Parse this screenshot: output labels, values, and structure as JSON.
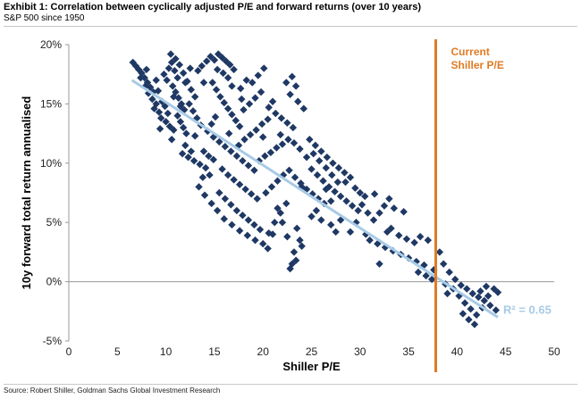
{
  "header": {
    "title": "Exhibit 1: Correlation between cyclically adjusted P/E and forward returns (over 10 years)",
    "subtitle": "S&P 500 since 1950"
  },
  "footer": {
    "source": "Source: Robert Shiller, Goldman Sachs Global Investment Research"
  },
  "colors": {
    "points": "#1f3864",
    "trend": "#a8cbe6",
    "current_line": "#e07b24"
  },
  "chart_data": {
    "type": "scatter",
    "xlabel": "Shiller P/E",
    "ylabel": "10y forward total return annualised",
    "xlim": [
      0,
      50
    ],
    "ylim": [
      -5,
      20
    ],
    "x_ticks": [
      "0",
      "5",
      "10",
      "15",
      "20",
      "25",
      "30",
      "35",
      "40",
      "45",
      "50"
    ],
    "y_ticks": [
      "-5%",
      "0%",
      "5%",
      "10%",
      "15%",
      "20%"
    ],
    "grid": false,
    "current_pe": 37.8,
    "current_label_line1": "Current",
    "current_label_line2": "Shiller P/E",
    "r_squared_label": "R² = 0.65",
    "trendline": {
      "x": [
        6.5,
        44.2
      ],
      "y": [
        17.0,
        -3.0
      ]
    },
    "points": [
      [
        6.6,
        18.5
      ],
      [
        6.9,
        18.2
      ],
      [
        7.2,
        17.9
      ],
      [
        7.5,
        17.6
      ],
      [
        7.8,
        17.2
      ],
      [
        8.1,
        16.8
      ],
      [
        8.4,
        16.4
      ],
      [
        8.7,
        16.0
      ],
      [
        7.4,
        17.2
      ],
      [
        7.9,
        16.5
      ],
      [
        8.2,
        15.9
      ],
      [
        8.6,
        15.4
      ],
      [
        9.0,
        15.0
      ],
      [
        8.8,
        14.6
      ],
      [
        9.3,
        14.3
      ],
      [
        9.6,
        15.2
      ],
      [
        9.9,
        14.8
      ],
      [
        10.2,
        14.2
      ],
      [
        9.5,
        13.8
      ],
      [
        10.0,
        13.5
      ],
      [
        10.4,
        13.1
      ],
      [
        10.8,
        12.8
      ],
      [
        9.8,
        17.5
      ],
      [
        10.1,
        17.0
      ],
      [
        10.3,
        18.0
      ],
      [
        10.6,
        18.5
      ],
      [
        10.9,
        17.8
      ],
      [
        11.2,
        17.2
      ],
      [
        10.7,
        16.5
      ],
      [
        11.0,
        16.0
      ],
      [
        11.3,
        15.5
      ],
      [
        11.6,
        15.0
      ],
      [
        11.9,
        14.5
      ],
      [
        11.2,
        14.0
      ],
      [
        11.5,
        13.5
      ],
      [
        11.8,
        13.0
      ],
      [
        12.1,
        12.5
      ],
      [
        10.5,
        19.2
      ],
      [
        11.0,
        18.8
      ],
      [
        11.4,
        18.3
      ],
      [
        11.8,
        17.6
      ],
      [
        12.2,
        16.9
      ],
      [
        12.6,
        16.2
      ],
      [
        13.0,
        15.6
      ],
      [
        12.4,
        15.0
      ],
      [
        12.8,
        14.4
      ],
      [
        13.2,
        13.8
      ],
      [
        13.6,
        13.2
      ],
      [
        12.0,
        11.5
      ],
      [
        11.7,
        10.8
      ],
      [
        12.3,
        10.5
      ],
      [
        12.9,
        10.2
      ],
      [
        13.5,
        9.9
      ],
      [
        14.1,
        9.6
      ],
      [
        13.9,
        11.0
      ],
      [
        14.4,
        10.6
      ],
      [
        14.9,
        10.3
      ],
      [
        13.3,
        17.8
      ],
      [
        13.7,
        18.2
      ],
      [
        14.2,
        18.6
      ],
      [
        14.6,
        19.0
      ],
      [
        15.0,
        18.7
      ],
      [
        15.4,
        19.2
      ],
      [
        15.8,
        18.9
      ],
      [
        16.2,
        18.6
      ],
      [
        16.6,
        18.3
      ],
      [
        17.0,
        17.9
      ],
      [
        16.4,
        17.2
      ],
      [
        15.9,
        17.6
      ],
      [
        15.3,
        17.9
      ],
      [
        14.8,
        16.8
      ],
      [
        15.2,
        16.2
      ],
      [
        15.6,
        15.6
      ],
      [
        16.0,
        15.1
      ],
      [
        16.4,
        14.6
      ],
      [
        16.8,
        14.1
      ],
      [
        17.2,
        13.6
      ],
      [
        17.6,
        13.1
      ],
      [
        15.1,
        13.9
      ],
      [
        14.7,
        13.3
      ],
      [
        14.3,
        12.7
      ],
      [
        14.9,
        12.2
      ],
      [
        15.5,
        11.8
      ],
      [
        16.1,
        11.4
      ],
      [
        16.7,
        11.0
      ],
      [
        17.3,
        10.6
      ],
      [
        17.9,
        10.2
      ],
      [
        18.5,
        9.8
      ],
      [
        19.1,
        9.4
      ],
      [
        15.8,
        9.5
      ],
      [
        16.4,
        9.0
      ],
      [
        17.0,
        8.6
      ],
      [
        17.6,
        8.2
      ],
      [
        18.2,
        7.8
      ],
      [
        18.8,
        7.4
      ],
      [
        19.4,
        7.0
      ],
      [
        15.5,
        7.5
      ],
      [
        16.1,
        7.0
      ],
      [
        16.7,
        6.5
      ],
      [
        17.3,
        6.0
      ],
      [
        17.9,
        5.6
      ],
      [
        18.5,
        5.2
      ],
      [
        19.1,
        4.8
      ],
      [
        19.7,
        4.4
      ],
      [
        14.5,
        9.0
      ],
      [
        13.8,
        8.8
      ],
      [
        13.4,
        8.0
      ],
      [
        14.0,
        7.3
      ],
      [
        14.7,
        6.6
      ],
      [
        15.3,
        6.0
      ],
      [
        16.0,
        5.3
      ],
      [
        16.8,
        4.8
      ],
      [
        17.6,
        4.3
      ],
      [
        18.4,
        3.9
      ],
      [
        19.2,
        3.5
      ],
      [
        20.0,
        3.2
      ],
      [
        20.6,
        4.1
      ],
      [
        21.2,
        5.0
      ],
      [
        21.8,
        5.8
      ],
      [
        22.4,
        6.6
      ],
      [
        20.3,
        7.5
      ],
      [
        20.9,
        8.0
      ],
      [
        21.5,
        8.5
      ],
      [
        22.1,
        9.0
      ],
      [
        22.7,
        9.4
      ],
      [
        23.3,
        8.8
      ],
      [
        23.9,
        8.3
      ],
      [
        24.5,
        7.8
      ],
      [
        25.1,
        7.4
      ],
      [
        25.7,
        7.0
      ],
      [
        26.3,
        6.6
      ],
      [
        19.6,
        10.2
      ],
      [
        20.2,
        10.6
      ],
      [
        20.8,
        10.9
      ],
      [
        21.4,
        11.3
      ],
      [
        22.0,
        11.6
      ],
      [
        22.6,
        12.0
      ],
      [
        23.2,
        11.7
      ],
      [
        23.8,
        11.2
      ],
      [
        17.5,
        11.5
      ],
      [
        18.1,
        12.0
      ],
      [
        18.7,
        12.4
      ],
      [
        19.3,
        12.8
      ],
      [
        19.9,
        13.3
      ],
      [
        20.5,
        13.7
      ],
      [
        18.0,
        14.5
      ],
      [
        18.6,
        15.0
      ],
      [
        19.2,
        15.5
      ],
      [
        19.8,
        16.0
      ],
      [
        18.9,
        16.8
      ],
      [
        19.5,
        17.4
      ],
      [
        20.1,
        18.0
      ],
      [
        18.3,
        17.0
      ],
      [
        17.7,
        16.3
      ],
      [
        20.6,
        14.7
      ],
      [
        21.3,
        14.2
      ],
      [
        21.9,
        13.8
      ],
      [
        22.5,
        13.4
      ],
      [
        23.1,
        13.0
      ],
      [
        22.4,
        16.8
      ],
      [
        23.0,
        17.3
      ],
      [
        23.4,
        16.5
      ],
      [
        22.8,
        15.8
      ],
      [
        23.6,
        15.2
      ],
      [
        24.2,
        14.6
      ],
      [
        24.8,
        12.0
      ],
      [
        25.4,
        11.5
      ],
      [
        26.0,
        11.0
      ],
      [
        26.6,
        10.5
      ],
      [
        27.2,
        10.0
      ],
      [
        27.8,
        9.6
      ],
      [
        28.4,
        9.2
      ],
      [
        29.0,
        8.8
      ],
      [
        25.0,
        9.5
      ],
      [
        25.6,
        9.0
      ],
      [
        26.2,
        8.5
      ],
      [
        26.8,
        8.0
      ],
      [
        27.4,
        7.6
      ],
      [
        28.0,
        7.2
      ],
      [
        28.6,
        6.8
      ],
      [
        29.2,
        6.4
      ],
      [
        29.8,
        6.0
      ],
      [
        24.5,
        10.5
      ],
      [
        25.2,
        10.8
      ],
      [
        25.8,
        10.2
      ],
      [
        26.5,
        9.6
      ],
      [
        27.1,
        9.0
      ],
      [
        27.7,
        8.4
      ],
      [
        23.5,
        4.5
      ],
      [
        23.8,
        3.5
      ],
      [
        23.2,
        2.5
      ],
      [
        23.0,
        1.5
      ],
      [
        22.8,
        1.1
      ],
      [
        23.4,
        1.8
      ],
      [
        24.0,
        3.0
      ],
      [
        22.5,
        3.8
      ],
      [
        22.0,
        5.0
      ],
      [
        21.5,
        6.2
      ],
      [
        21.0,
        4.0
      ],
      [
        20.5,
        2.8
      ],
      [
        25.0,
        5.5
      ],
      [
        25.5,
        6.0
      ],
      [
        26.0,
        5.2
      ],
      [
        27.0,
        4.8
      ],
      [
        28.0,
        5.2
      ],
      [
        27.5,
        4.2
      ],
      [
        26.5,
        7.8
      ],
      [
        27.0,
        6.8
      ],
      [
        28.5,
        8.4
      ],
      [
        29.5,
        7.9
      ],
      [
        30.0,
        7.5
      ],
      [
        30.5,
        7.2
      ],
      [
        31.5,
        7.4
      ],
      [
        33.0,
        7.0
      ],
      [
        32.5,
        6.4
      ],
      [
        32.0,
        5.8
      ],
      [
        33.5,
        6.2
      ],
      [
        34.5,
        5.9
      ],
      [
        32.8,
        4.2
      ],
      [
        31.0,
        3.5
      ],
      [
        31.8,
        3.2
      ],
      [
        32.6,
        2.9
      ],
      [
        33.4,
        2.6
      ],
      [
        34.2,
        2.3
      ],
      [
        35.0,
        2.0
      ],
      [
        35.8,
        1.7
      ],
      [
        36.6,
        1.4
      ],
      [
        37.0,
        3.5
      ],
      [
        36.2,
        3.8
      ],
      [
        35.6,
        3.3
      ],
      [
        34.8,
        3.6
      ],
      [
        34.0,
        3.9
      ],
      [
        33.2,
        4.5
      ],
      [
        30.2,
        6.5
      ],
      [
        30.8,
        5.8
      ],
      [
        31.4,
        5.2
      ],
      [
        29.6,
        5.0
      ],
      [
        36.0,
        0.8
      ],
      [
        36.8,
        0.5
      ],
      [
        37.4,
        0.2
      ],
      [
        38.2,
        2.5
      ],
      [
        38.6,
        1.5
      ],
      [
        39.2,
        0.8
      ],
      [
        39.8,
        0.2
      ],
      [
        40.4,
        -0.3
      ],
      [
        41.0,
        -0.6
      ],
      [
        41.6,
        -1.0
      ],
      [
        42.2,
        -1.3
      ],
      [
        42.8,
        -1.6
      ],
      [
        43.4,
        -2.0
      ],
      [
        44.0,
        -2.4
      ],
      [
        40.2,
        -1.2
      ],
      [
        40.8,
        -1.8
      ],
      [
        41.4,
        -2.3
      ],
      [
        42.0,
        -2.8
      ],
      [
        42.6,
        -2.2
      ],
      [
        43.2,
        -1.2
      ],
      [
        43.8,
        -0.6
      ],
      [
        44.2,
        -0.9
      ],
      [
        43.0,
        -0.4
      ],
      [
        41.2,
        -3.2
      ],
      [
        40.6,
        -2.7
      ],
      [
        39.6,
        -0.6
      ],
      [
        38.8,
        -0.2
      ],
      [
        37.6,
        1.0
      ],
      [
        41.8,
        -3.6
      ],
      [
        42.4,
        -0.8
      ],
      [
        39.0,
        -1.0
      ],
      [
        32.0,
        1.5
      ],
      [
        30.6,
        4.0
      ],
      [
        29.0,
        4.2
      ],
      [
        24.0,
        8.0
      ],
      [
        21.0,
        15.2
      ],
      [
        20.0,
        12.2
      ],
      [
        16.5,
        12.5
      ],
      [
        12.5,
        18.0
      ],
      [
        13.9,
        16.8
      ],
      [
        9.2,
        16.1
      ],
      [
        12.0,
        16.8
      ],
      [
        11.5,
        14.8
      ],
      [
        10.6,
        12.0
      ],
      [
        9.4,
        12.9
      ],
      [
        8.0,
        17.9
      ],
      [
        9.0,
        17.0
      ],
      [
        10.8,
        15.6
      ],
      [
        13.0,
        12.3
      ],
      [
        12.6,
        11.0
      ],
      [
        16.8,
        16.5
      ],
      [
        17.8,
        15.4
      ],
      [
        21.8,
        12.4
      ]
    ]
  }
}
